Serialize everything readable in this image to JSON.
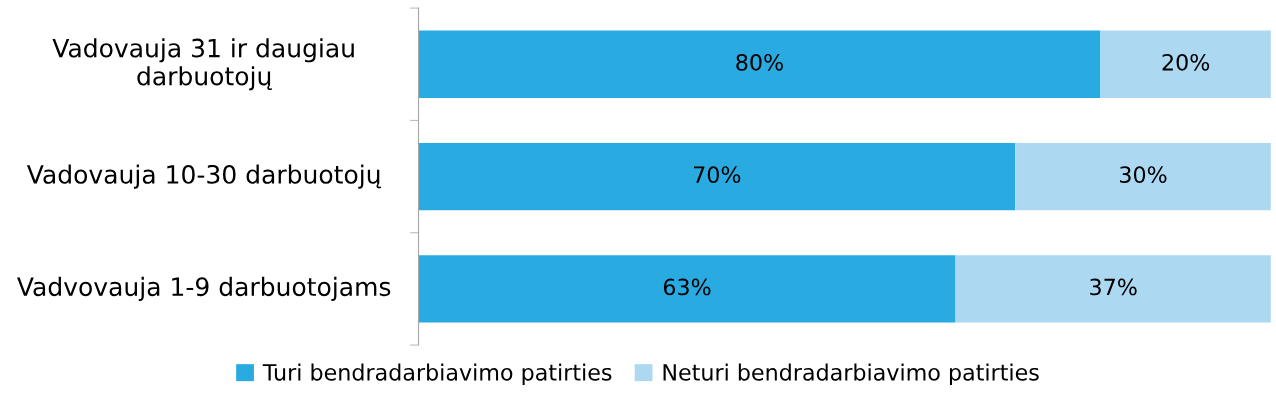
{
  "chart_data": {
    "type": "bar",
    "orientation": "horizontal",
    "stacked": true,
    "categories": [
      "Vadovauja 31 ir daugiau darbuotojų",
      "Vadovauja 10-30 darbuotojų",
      "Vadvovauja 1-9 darbuotojams"
    ],
    "series": [
      {
        "name": "Turi bendradarbiavimo patirties",
        "color": "#29abe2",
        "values": [
          80,
          70,
          63
        ],
        "value_labels": [
          "80%",
          "70%",
          "63%"
        ]
      },
      {
        "name": "Neturi bendradarbiavimo patirties",
        "color": "#acd8f1",
        "values": [
          20,
          30,
          37
        ],
        "value_labels": [
          "20%",
          "30%",
          "37%"
        ]
      }
    ],
    "xlim": [
      0,
      100
    ],
    "tick_labels": "y",
    "legend": "bottom",
    "grid": false
  }
}
